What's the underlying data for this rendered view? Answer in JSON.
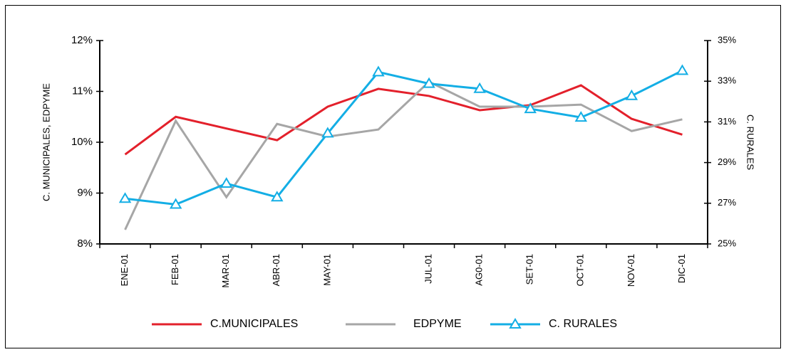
{
  "chart_data": {
    "type": "line",
    "y_label": "C. MUNICIPALES, EDPYME",
    "y2_label": "C. RURALES",
    "categories": [
      "ENE-01",
      "FEB-01",
      "MAR-01",
      "ABR-01",
      "MAY-01",
      null,
      "JUL-01",
      "AG0-01",
      "SET-01",
      "OCT-01",
      "NOV-01",
      "DIC-01"
    ],
    "series": [
      {
        "name": "C.MUNICIPALES",
        "color": "#e3202b",
        "values": [
          9.76,
          10.5,
          10.27,
          10.04,
          10.7,
          11.05,
          10.91,
          10.63,
          10.73,
          11.12,
          10.46,
          10.15
        ]
      },
      {
        "name": "EDPYME",
        "color": "#a6a6a6",
        "values": [
          8.28,
          10.42,
          8.92,
          10.36,
          10.11,
          10.25,
          11.19,
          10.7,
          10.7,
          10.74,
          10.22,
          10.45
        ]
      },
      {
        "name": "C. RURALES",
        "color": "#13aee5",
        "axis": "y2",
        "marker": "triangle",
        "values": [
          27.23,
          26.94,
          27.97,
          27.3,
          30.44,
          33.45,
          32.88,
          32.63,
          31.64,
          31.22,
          32.28,
          33.52
        ]
      }
    ],
    "ylim": [
      8,
      12
    ],
    "yticks": [
      {
        "value": 8,
        "label": "8%"
      },
      {
        "value": 9,
        "label": "9%"
      },
      {
        "value": 10,
        "label": "10%"
      },
      {
        "value": 11,
        "label": "11%"
      },
      {
        "value": 12,
        "label": "12%"
      }
    ],
    "y2lim": [
      25,
      35
    ],
    "y2ticks": [
      {
        "value": 25,
        "label": "25%"
      },
      {
        "value": 27,
        "label": "27%"
      },
      {
        "value": 29,
        "label": "29%"
      },
      {
        "value": 31,
        "label": "31%"
      },
      {
        "value": 33,
        "label": "33%"
      },
      {
        "value": 35,
        "label": "35%"
      }
    ],
    "legend": "bottom"
  }
}
